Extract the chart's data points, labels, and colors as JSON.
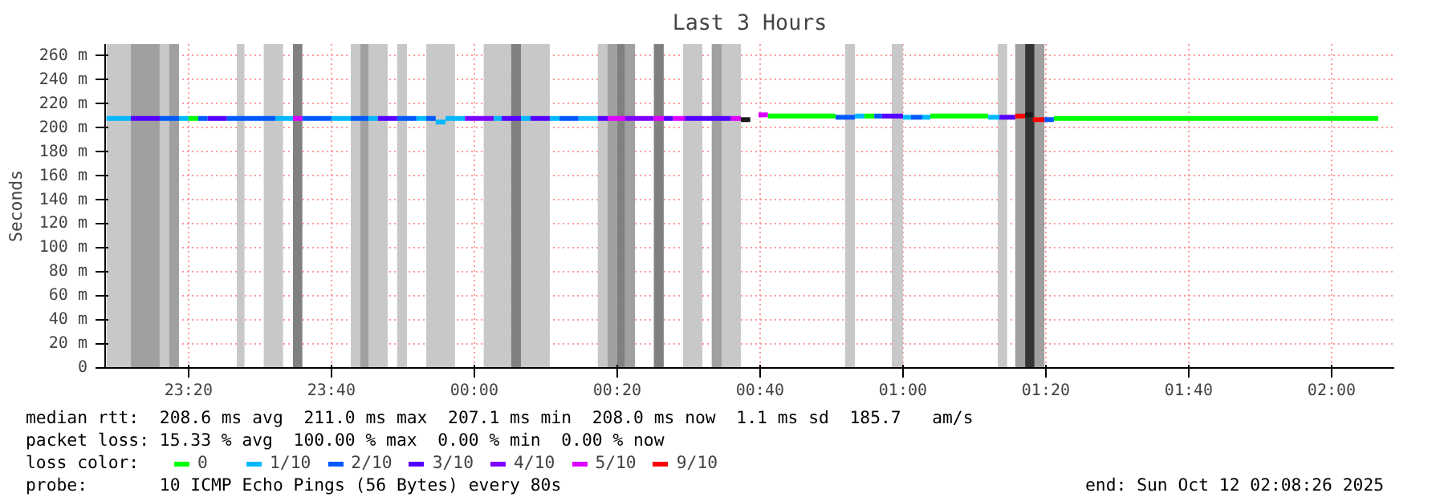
{
  "chart_data": {
    "type": "line",
    "title": "Last 3 Hours",
    "ylabel": "Seconds",
    "legend_title": "loss color:",
    "legend": "bottom",
    "grid": true,
    "marker": "none",
    "line_style": "solid",
    "xlim": [
      "2025-10-11T23:08:20",
      "2025-10-12T02:08:46"
    ],
    "ylim": [
      0,
      270
    ],
    "xticks": [
      {
        "value": "2025-10-11T23:20:00",
        "label": "23:20"
      },
      {
        "value": "2025-10-11T23:40:00",
        "label": "23:40"
      },
      {
        "value": "2025-10-12T00:00:00",
        "label": "00:00"
      },
      {
        "value": "2025-10-12T00:20:00",
        "label": "00:20"
      },
      {
        "value": "2025-10-12T00:40:00",
        "label": "00:40"
      },
      {
        "value": "2025-10-12T01:00:00",
        "label": "01:00"
      },
      {
        "value": "2025-10-12T01:20:00",
        "label": "01:20"
      },
      {
        "value": "2025-10-12T01:40:00",
        "label": "01:40"
      },
      {
        "value": "2025-10-12T02:00:00",
        "label": "02:00"
      }
    ],
    "yticks": [
      0,
      {
        "value": 20,
        "label": "20 m"
      },
      {
        "value": 40,
        "label": "40 m"
      },
      {
        "value": 60,
        "label": "60 m"
      },
      {
        "value": 80,
        "label": "80 m"
      },
      {
        "value": 100,
        "label": "100 m"
      },
      {
        "value": 120,
        "label": "120 m"
      },
      {
        "value": 140,
        "label": "140 m"
      },
      {
        "value": 160,
        "label": "160 m"
      },
      {
        "value": 180,
        "label": "180 m"
      },
      {
        "value": 200,
        "label": "200 m"
      },
      {
        "value": 220,
        "label": "220 m"
      },
      {
        "value": 240,
        "label": "240 m"
      },
      {
        "value": 260,
        "label": "260 m"
      }
    ],
    "series": [
      {
        "name": "0",
        "color": "#00ff00",
        "x": [
          "2025-10-11T23:20:00",
          "2025-10-11T23:21:22"
        ],
        "values": [
          208,
          208
        ]
      },
      {
        "color": "#00ff00",
        "x": [
          "2025-10-12T00:41:06",
          "2025-10-12T00:50:35"
        ],
        "values": [
          210,
          210
        ]
      },
      {
        "color": "#00ff00",
        "x": [
          "2025-10-12T00:54:36",
          "2025-10-12T00:55:59"
        ],
        "values": [
          210,
          210
        ]
      },
      {
        "color": "#00ff00",
        "x": [
          "2025-10-12T01:03:50",
          "2025-10-12T01:11:56"
        ],
        "values": [
          210,
          210
        ]
      },
      {
        "color": "#00ff00",
        "x": [
          "2025-10-12T01:21:07",
          "2025-10-12T02:06:32"
        ],
        "values": [
          208,
          208
        ]
      },
      {
        "name": "1/10",
        "color": "#00b8ff",
        "x": [
          "2025-10-11T23:08:31",
          "2025-10-11T23:11:56"
        ],
        "values": [
          208,
          208
        ]
      },
      {
        "color": "#00b8ff",
        "x": [
          "2025-10-11T23:18:40",
          "2025-10-11T23:20:00"
        ],
        "values": [
          208,
          208
        ]
      },
      {
        "color": "#00b8ff",
        "x": [
          "2025-10-11T23:32:10",
          "2025-10-11T23:34:37"
        ],
        "values": [
          208,
          208
        ]
      },
      {
        "color": "#00b8ff",
        "x": [
          "2025-10-11T23:40:00",
          "2025-10-11T23:42:43"
        ],
        "values": [
          208,
          208
        ]
      },
      {
        "color": "#00b8ff",
        "x": [
          "2025-10-11T23:45:11",
          "2025-10-11T23:46:30"
        ],
        "values": [
          208,
          208
        ]
      },
      {
        "color": "#00b8ff",
        "x": [
          "2025-10-11T23:51:54",
          "2025-10-11T23:53:17"
        ],
        "values": [
          208,
          208
        ]
      },
      {
        "color": "#00b8ff",
        "x": [
          "2025-10-11T23:54:36",
          "2025-10-11T23:55:59"
        ],
        "values": [
          205,
          205
        ]
      },
      {
        "color": "#00b8ff",
        "x": [
          "2025-10-11T23:55:59",
          "2025-10-11T23:58:41"
        ],
        "values": [
          208,
          208
        ]
      },
      {
        "color": "#00b8ff",
        "x": [
          "2025-10-12T00:02:42",
          "2025-10-12T00:03:50"
        ],
        "values": [
          208,
          208
        ]
      },
      {
        "color": "#00b8ff",
        "x": [
          "2025-10-12T00:06:32",
          "2025-10-12T00:07:52"
        ],
        "values": [
          208,
          208
        ]
      },
      {
        "color": "#00b8ff",
        "x": [
          "2025-10-12T00:10:34",
          "2025-10-12T00:11:56"
        ],
        "values": [
          208,
          208
        ]
      },
      {
        "color": "#00b8ff",
        "x": [
          "2025-10-12T00:14:35",
          "2025-10-12T00:17:17"
        ],
        "values": [
          208,
          208
        ]
      },
      {
        "color": "#00b8ff",
        "x": [
          "2025-10-12T00:53:17",
          "2025-10-12T00:54:36"
        ],
        "values": [
          210,
          210
        ]
      },
      {
        "color": "#00b8ff",
        "x": [
          "2025-10-12T01:00:00",
          "2025-10-12T01:01:08"
        ],
        "values": [
          209,
          209
        ]
      },
      {
        "color": "#00b8ff",
        "x": [
          "2025-10-12T01:02:42",
          "2025-10-12T01:03:50"
        ],
        "values": [
          209,
          209
        ]
      },
      {
        "color": "#00b8ff",
        "x": [
          "2025-10-12T01:11:56",
          "2025-10-12T01:13:30"
        ],
        "values": [
          209,
          209
        ]
      },
      {
        "name": "2/10",
        "color": "#0059ff",
        "x": [
          "2025-10-11T23:15:58",
          "2025-10-11T23:18:40"
        ],
        "values": [
          208,
          208
        ]
      },
      {
        "color": "#0059ff",
        "x": [
          "2025-10-11T23:21:22",
          "2025-10-11T23:22:41"
        ],
        "values": [
          208,
          208
        ]
      },
      {
        "color": "#0059ff",
        "x": [
          "2025-10-11T23:25:23",
          "2025-10-11T23:32:10"
        ],
        "values": [
          208,
          208
        ]
      },
      {
        "color": "#0059ff",
        "x": [
          "2025-10-11T23:35:56",
          "2025-10-11T23:40:00"
        ],
        "values": [
          208,
          208
        ]
      },
      {
        "color": "#0059ff",
        "x": [
          "2025-10-11T23:42:43",
          "2025-10-11T23:45:11"
        ],
        "values": [
          208,
          208
        ]
      },
      {
        "color": "#0059ff",
        "x": [
          "2025-10-11T23:49:12",
          "2025-10-11T23:51:54"
        ],
        "values": [
          208,
          208
        ]
      },
      {
        "color": "#0059ff",
        "x": [
          "2025-10-11T23:53:17",
          "2025-10-11T23:54:36"
        ],
        "values": [
          208,
          208
        ]
      },
      {
        "color": "#0059ff",
        "x": [
          "2025-10-12T00:11:56",
          "2025-10-12T00:14:35"
        ],
        "values": [
          208,
          208
        ]
      },
      {
        "color": "#0059ff",
        "x": [
          "2025-10-12T00:50:35",
          "2025-10-12T00:53:17"
        ],
        "values": [
          209,
          209
        ]
      },
      {
        "color": "#0059ff",
        "x": [
          "2025-10-12T00:55:59",
          "2025-10-12T00:57:04"
        ],
        "values": [
          210,
          210
        ]
      },
      {
        "color": "#0059ff",
        "x": [
          "2025-10-12T01:01:08",
          "2025-10-12T01:02:42"
        ],
        "values": [
          209,
          209
        ]
      },
      {
        "color": "#0059ff",
        "x": [
          "2025-10-12T01:19:48",
          "2025-10-12T01:21:07"
        ],
        "values": [
          207,
          207
        ]
      },
      {
        "name": "3/10",
        "color": "#5500ff",
        "x": [
          "2025-10-11T23:11:56",
          "2025-10-11T23:15:58"
        ],
        "values": [
          208,
          208
        ]
      },
      {
        "color": "#5500ff",
        "x": [
          "2025-10-11T23:22:41",
          "2025-10-11T23:25:23"
        ],
        "values": [
          208,
          208
        ]
      },
      {
        "color": "#5500ff",
        "x": [
          "2025-10-11T23:46:30",
          "2025-10-11T23:49:12"
        ],
        "values": [
          208,
          208
        ]
      },
      {
        "color": "#5500ff",
        "x": [
          "2025-10-12T00:03:50",
          "2025-10-12T00:06:32"
        ],
        "values": [
          208,
          208
        ]
      },
      {
        "color": "#5500ff",
        "x": [
          "2025-10-12T00:07:52",
          "2025-10-12T00:10:34"
        ],
        "values": [
          208,
          208
        ]
      },
      {
        "color": "#5500ff",
        "x": [
          "2025-10-12T00:17:17",
          "2025-10-12T00:18:40"
        ],
        "values": [
          208,
          208
        ]
      },
      {
        "color": "#5500ff",
        "x": [
          "2025-10-12T00:26:31",
          "2025-10-12T00:27:50"
        ],
        "values": [
          208,
          208
        ]
      },
      {
        "color": "#5500ff",
        "x": [
          "2025-10-12T00:29:28",
          "2025-10-12T00:35:56"
        ],
        "values": [
          208,
          208
        ]
      },
      {
        "color": "#5500ff",
        "x": [
          "2025-10-12T00:57:04",
          "2025-10-12T01:00:00"
        ],
        "values": [
          210,
          210
        ]
      },
      {
        "color": "#5500ff",
        "x": [
          "2025-10-12T01:13:30",
          "2025-10-12T01:15:43"
        ],
        "values": [
          209,
          209
        ]
      },
      {
        "name": "4/10",
        "color": "#7e00ff",
        "x": [
          "2025-10-11T23:58:41",
          "2025-10-12T00:02:42"
        ],
        "values": [
          208,
          208
        ]
      },
      {
        "color": "#7e00ff",
        "x": [
          "2025-10-12T00:21:07",
          "2025-10-12T00:25:08"
        ],
        "values": [
          208,
          208
        ]
      },
      {
        "name": "5/10",
        "color": "#dd00ff",
        "x": [
          "2025-10-11T23:34:37",
          "2025-10-11T23:35:56"
        ],
        "values": [
          208,
          208
        ]
      },
      {
        "color": "#dd00ff",
        "x": [
          "2025-10-12T00:18:40",
          "2025-10-12T00:21:07"
        ],
        "values": [
          208,
          208
        ]
      },
      {
        "color": "#dd00ff",
        "x": [
          "2025-10-12T00:25:08",
          "2025-10-12T00:26:31"
        ],
        "values": [
          208,
          208
        ]
      },
      {
        "color": "#dd00ff",
        "x": [
          "2025-10-12T00:27:50",
          "2025-10-12T00:29:28"
        ],
        "values": [
          208,
          208
        ]
      },
      {
        "color": "#dd00ff",
        "x": [
          "2025-10-12T00:35:56",
          "2025-10-12T00:37:19"
        ],
        "values": [
          208,
          208
        ]
      },
      {
        "color": "#dd00ff",
        "x": [
          "2025-10-12T00:39:47",
          "2025-10-12T00:41:06"
        ],
        "values": [
          211,
          211
        ]
      },
      {
        "name": "9/10",
        "color": "#ff0000",
        "x": [
          "2025-10-12T01:15:43",
          "2025-10-12T01:17:06"
        ],
        "values": [
          210,
          210
        ]
      },
      {
        "color": "#ff0000",
        "x": [
          "2025-10-12T01:18:11",
          "2025-10-12T01:19:48"
        ],
        "values": [
          207,
          207
        ]
      },
      {
        "color": "#1a1a1a",
        "x": [
          "2025-10-12T00:37:19",
          "2025-10-12T00:38:38"
        ],
        "values": [
          207,
          207
        ]
      },
      {
        "color": "#1a1a1a",
        "x": [
          "2025-10-12T01:17:06",
          "2025-10-12T01:18:11"
        ],
        "values": [
          211,
          211
        ]
      }
    ],
    "bands": [
      {
        "axis": "x",
        "from": "2025-10-11T23:08:31",
        "to": "2025-10-11T23:11:56",
        "color": "#c8c8c8"
      },
      {
        "axis": "x",
        "from": "2025-10-11T23:11:56",
        "to": "2025-10-11T23:15:58",
        "color": "#a0a0a0"
      },
      {
        "axis": "x",
        "from": "2025-10-11T23:15:58",
        "to": "2025-10-11T23:17:17",
        "color": "#c8c8c8"
      },
      {
        "axis": "x",
        "from": "2025-10-11T23:17:17",
        "to": "2025-10-11T23:18:40",
        "color": "#a0a0a0"
      },
      {
        "axis": "x",
        "from": "2025-10-11T23:26:46",
        "to": "2025-10-11T23:27:50",
        "color": "#c8c8c8"
      },
      {
        "axis": "x",
        "from": "2025-10-11T23:30:32",
        "to": "2025-10-11T23:33:14",
        "color": "#c8c8c8"
      },
      {
        "axis": "x",
        "from": "2025-10-11T23:34:37",
        "to": "2025-10-11T23:35:56",
        "color": "#808080"
      },
      {
        "axis": "x",
        "from": "2025-10-11T23:42:43",
        "to": "2025-10-11T23:44:02",
        "color": "#c8c8c8"
      },
      {
        "axis": "x",
        "from": "2025-10-11T23:44:02",
        "to": "2025-10-11T23:45:11",
        "color": "#a0a0a0"
      },
      {
        "axis": "x",
        "from": "2025-10-11T23:45:11",
        "to": "2025-10-11T23:47:53",
        "color": "#c8c8c8"
      },
      {
        "axis": "x",
        "from": "2025-10-11T23:49:12",
        "to": "2025-10-11T23:50:35",
        "color": "#c8c8c8"
      },
      {
        "axis": "x",
        "from": "2025-10-11T23:53:17",
        "to": "2025-10-11T23:57:18",
        "color": "#c8c8c8"
      },
      {
        "axis": "x",
        "from": "2025-10-12T00:01:19",
        "to": "2025-10-12T00:05:10",
        "color": "#c8c8c8"
      },
      {
        "axis": "x",
        "from": "2025-10-12T00:05:10",
        "to": "2025-10-12T00:06:32",
        "color": "#808080"
      },
      {
        "axis": "x",
        "from": "2025-10-12T00:06:32",
        "to": "2025-10-12T00:10:34",
        "color": "#c8c8c8"
      },
      {
        "axis": "x",
        "from": "2025-10-12T00:17:17",
        "to": "2025-10-12T00:18:40",
        "color": "#c8c8c8"
      },
      {
        "axis": "x",
        "from": "2025-10-12T00:18:40",
        "to": "2025-10-12T00:20:00",
        "color": "#a0a0a0"
      },
      {
        "axis": "x",
        "from": "2025-10-12T00:20:00",
        "to": "2025-10-12T00:21:07",
        "color": "#808080"
      },
      {
        "axis": "x",
        "from": "2025-10-12T00:21:07",
        "to": "2025-10-12T00:22:30",
        "color": "#a0a0a0"
      },
      {
        "axis": "x",
        "from": "2025-10-12T00:25:08",
        "to": "2025-10-12T00:26:31",
        "color": "#808080"
      },
      {
        "axis": "x",
        "from": "2025-10-12T00:29:13",
        "to": "2025-10-12T00:31:55",
        "color": "#c8c8c8"
      },
      {
        "axis": "x",
        "from": "2025-10-12T00:33:14",
        "to": "2025-10-12T00:34:37",
        "color": "#a0a0a0"
      },
      {
        "axis": "x",
        "from": "2025-10-12T00:34:37",
        "to": "2025-10-12T00:37:19",
        "color": "#c8c8c8"
      },
      {
        "axis": "x",
        "from": "2025-10-12T00:51:54",
        "to": "2025-10-12T00:53:17",
        "color": "#c8c8c8"
      },
      {
        "axis": "x",
        "from": "2025-10-12T00:58:26",
        "to": "2025-10-12T01:00:00",
        "color": "#c8c8c8"
      },
      {
        "axis": "x",
        "from": "2025-10-12T01:13:16",
        "to": "2025-10-12T01:14:35",
        "color": "#c8c8c8"
      },
      {
        "axis": "x",
        "from": "2025-10-12T01:15:43",
        "to": "2025-10-12T01:17:06",
        "color": "#a0a0a0"
      },
      {
        "axis": "x",
        "from": "2025-10-12T01:17:06",
        "to": "2025-10-12T01:18:25",
        "color": "#333333"
      },
      {
        "axis": "x",
        "from": "2025-10-12T01:18:25",
        "to": "2025-10-12T01:19:48",
        "color": "#a0a0a0"
      }
    ],
    "annotations": [
      "median rtt:  208.6 ms avg  211.0 ms max  207.1 ms min  208.0 ms now  1.1 ms sd  185.7   am/s",
      "packet loss: 15.33 % avg  100.00 % max  0.00 % min  0.00 % now",
      "probe:       10 ICMP Echo Pings (56 Bytes) every 80s",
      "end: Sun Oct 12 02:08:26 2025"
    ]
  }
}
